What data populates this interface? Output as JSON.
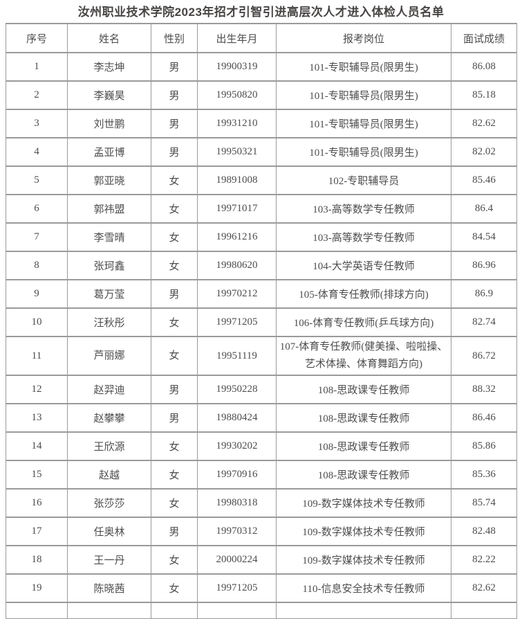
{
  "title": "汝州职业技术学院2023年招才引智引进高层次人才进入体检人员名单",
  "colors": {
    "title_text": "#474443",
    "cell_text": "#4d4d4d",
    "border": "#9a9a9a",
    "background": "#ffffff"
  },
  "table": {
    "headers": [
      "序号",
      "姓名",
      "性别",
      "出生年月",
      "报考岗位",
      "面试成绩"
    ],
    "rows": [
      {
        "no": "1",
        "name": "李志坤",
        "gender": "男",
        "birth": "19900319",
        "position": "101-专职辅导员(限男生)",
        "score": "86.08"
      },
      {
        "no": "2",
        "name": "李巍昊",
        "gender": "男",
        "birth": "19950820",
        "position": "101-专职辅导员(限男生)",
        "score": "85.18"
      },
      {
        "no": "3",
        "name": "刘世鹏",
        "gender": "男",
        "birth": "19931210",
        "position": "101-专职辅导员(限男生)",
        "score": "82.62"
      },
      {
        "no": "4",
        "name": "孟亚博",
        "gender": "男",
        "birth": "19950321",
        "position": "101-专职辅导员(限男生)",
        "score": "82.02"
      },
      {
        "no": "5",
        "name": "郭亚晓",
        "gender": "女",
        "birth": "19891008",
        "position": "102-专职辅导员",
        "score": "85.46"
      },
      {
        "no": "6",
        "name": "郭祎盟",
        "gender": "女",
        "birth": "19971017",
        "position": "103-高等数学专任教师",
        "score": "86.4"
      },
      {
        "no": "7",
        "name": "李雪晴",
        "gender": "女",
        "birth": "19961216",
        "position": "103-高等数学专任教师",
        "score": "84.54"
      },
      {
        "no": "8",
        "name": "张珂鑫",
        "gender": "女",
        "birth": "19980620",
        "position": "104-大学英语专任教师",
        "score": "86.96"
      },
      {
        "no": "9",
        "name": "葛万莹",
        "gender": "男",
        "birth": "19970212",
        "position": "105-体育专任教师(排球方向)",
        "score": "86.9"
      },
      {
        "no": "10",
        "name": "汪秋彤",
        "gender": "女",
        "birth": "19971205",
        "position": "106-体育专任教师(乒乓球方向)",
        "score": "82.74"
      },
      {
        "no": "11",
        "name": "芦丽娜",
        "gender": "女",
        "birth": "19951119",
        "position": "107-体育专任教师(健美操、啦啦操、艺术体操、体育舞蹈方向)",
        "score": "86.72",
        "tall": true
      },
      {
        "no": "12",
        "name": "赵羿迪",
        "gender": "男",
        "birth": "19950228",
        "position": "108-思政课专任教师",
        "score": "88.32"
      },
      {
        "no": "13",
        "name": "赵攀攀",
        "gender": "男",
        "birth": "19880424",
        "position": "108-思政课专任教师",
        "score": "86.46"
      },
      {
        "no": "14",
        "name": "王欣源",
        "gender": "女",
        "birth": "19930202",
        "position": "108-思政课专任教师",
        "score": "85.86"
      },
      {
        "no": "15",
        "name": "赵越",
        "gender": "女",
        "birth": "19970916",
        "position": "108-思政课专任教师",
        "score": "85.36"
      },
      {
        "no": "16",
        "name": "张莎莎",
        "gender": "女",
        "birth": "19980318",
        "position": "109-数字媒体技术专任教师",
        "score": "85.74"
      },
      {
        "no": "17",
        "name": "任奥林",
        "gender": "男",
        "birth": "19970312",
        "position": "109-数字媒体技术专任教师",
        "score": "82.48"
      },
      {
        "no": "18",
        "name": "王一丹",
        "gender": "女",
        "birth": "20000224",
        "position": "109-数字媒体技术专任教师",
        "score": "82.22"
      },
      {
        "no": "19",
        "name": "陈晓茜",
        "gender": "女",
        "birth": "19971205",
        "position": "110-信息安全技术专任教师",
        "score": "82.62"
      }
    ],
    "partial_row_at_bottom": true
  }
}
